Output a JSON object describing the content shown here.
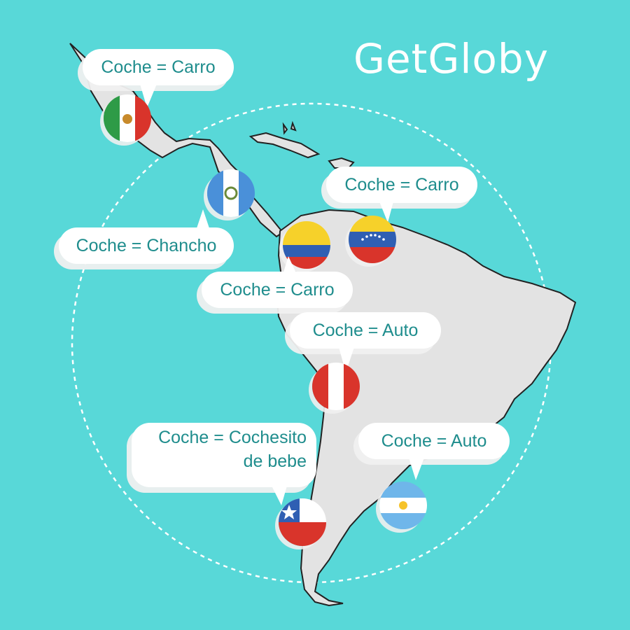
{
  "brand": {
    "logo_text": "GetGloby"
  },
  "colors": {
    "background": "#58d8d8",
    "land": "#e3e3e3",
    "bubble_text": "#1f8d8d",
    "bubble_fill": "#ffffff"
  },
  "map": {
    "region": "Latin America",
    "style": "outline-with-fill",
    "decorations": [
      "dashed-circle"
    ]
  },
  "labels": [
    {
      "country_flag": "mexico-flag",
      "text": "Coche = Carro"
    },
    {
      "country_flag": "guatemala-flag",
      "text": "Coche = Chancho"
    },
    {
      "country_flag": "venezuela-flag",
      "text": "Coche = Carro"
    },
    {
      "country_flag": "colombia-flag",
      "text": "Coche = Carro"
    },
    {
      "country_flag": "peru-flag",
      "text": "Coche = Auto"
    },
    {
      "country_flag": "chile-flag",
      "text_line1": "Coche = Cochesito",
      "text_line2": "de bebe"
    },
    {
      "country_flag": "argentina-flag",
      "text": "Coche = Auto"
    }
  ]
}
